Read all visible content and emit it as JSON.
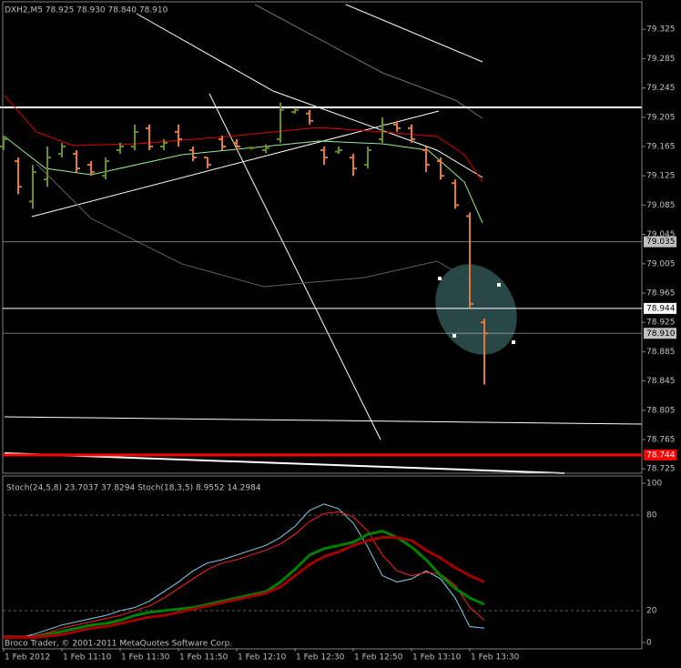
{
  "chart_data": [
    {
      "type": "ohlc",
      "title": "DXH2,M5  78.925 78.930 78.840 78.910",
      "categories": [
        "1 Feb 2012",
        null,
        null,
        null,
        "1 Feb 11:10",
        null,
        null,
        null,
        "1 Feb 11:30",
        null,
        null,
        null,
        "1 Feb 11:50",
        null,
        null,
        null,
        "1 Feb 12:10",
        null,
        null,
        null,
        "1 Feb 12:30",
        null,
        null,
        null,
        "1 Feb 12:50",
        null,
        null,
        null,
        "1 Feb 13:10",
        null,
        null,
        null,
        "1 Feb 13:30",
        null
      ],
      "open": [
        79.165,
        79.145,
        79.09,
        79.12,
        79.155,
        79.155,
        79.14,
        79.125,
        79.16,
        79.165,
        79.19,
        79.165,
        79.185,
        79.16,
        79.15,
        79.175,
        79.17,
        79.163,
        79.16,
        79.175,
        79.212,
        79.21,
        79.16,
        79.158,
        79.15,
        79.14,
        79.175,
        79.195,
        79.19,
        79.16,
        79.145,
        79.115,
        79.07,
        78.925
      ],
      "high": [
        79.18,
        79.15,
        79.14,
        79.165,
        79.17,
        79.16,
        79.145,
        79.15,
        79.17,
        79.195,
        79.195,
        79.175,
        79.195,
        79.165,
        79.15,
        79.18,
        79.175,
        79.165,
        79.168,
        79.225,
        79.218,
        79.215,
        79.165,
        79.165,
        79.155,
        79.165,
        79.205,
        79.2,
        79.195,
        79.165,
        79.15,
        79.12,
        79.075,
        78.93
      ],
      "low": [
        79.16,
        79.1,
        79.08,
        79.11,
        79.15,
        79.13,
        79.125,
        79.12,
        79.155,
        79.16,
        79.16,
        79.16,
        79.165,
        79.145,
        79.135,
        79.16,
        79.16,
        79.161,
        79.156,
        79.17,
        79.21,
        79.195,
        79.14,
        79.155,
        79.125,
        79.135,
        79.17,
        79.185,
        79.17,
        79.13,
        79.12,
        79.08,
        78.945,
        78.84
      ],
      "close": [
        79.175,
        79.11,
        79.13,
        79.15,
        79.165,
        79.135,
        79.13,
        79.145,
        79.165,
        79.185,
        79.165,
        79.17,
        79.175,
        79.15,
        79.14,
        79.165,
        79.165,
        79.163,
        79.163,
        79.215,
        79.215,
        79.2,
        79.15,
        79.16,
        79.135,
        79.16,
        79.195,
        79.19,
        79.175,
        79.14,
        79.125,
        79.085,
        78.95,
        78.91
      ],
      "up_color": "#6b8e23",
      "down_color": "#e07b39",
      "ylim": [
        78.719,
        79.365
      ],
      "yticks": [
        79.325,
        79.285,
        79.245,
        79.205,
        79.165,
        79.125,
        79.085,
        79.045,
        79.005,
        78.965,
        78.925,
        78.885,
        78.845,
        78.805,
        78.765,
        78.725
      ],
      "price_labels": [
        {
          "value": 79.035,
          "label": "79.035",
          "color": "#c0c0c0"
        },
        {
          "value": 78.944,
          "label": "78.944",
          "color": "#ffffff"
        },
        {
          "value": 78.91,
          "label": "78.910",
          "color": "#c0c0c0"
        },
        {
          "value": 78.744,
          "label": "78.744",
          "color": "#ff0000"
        }
      ]
    },
    {
      "type": "line",
      "title": "Stoch(24,5,8) 23.7037 37.8294  Stoch(18,3,5) 8.9552 14.2984",
      "series": [
        {
          "color": "#87ceeb",
          "width": 1,
          "values": [
            4,
            3,
            5,
            8,
            11,
            13,
            15,
            17,
            20,
            22,
            26,
            32,
            38,
            45,
            50,
            52,
            55,
            58,
            61,
            66,
            73,
            83,
            87,
            84,
            75,
            60,
            42,
            38,
            40,
            45,
            40,
            28,
            10,
            9
          ]
        },
        {
          "color": "#ff2020",
          "width": 1,
          "values": [
            4,
            4,
            4,
            6,
            9,
            11,
            13,
            15,
            17,
            20,
            23,
            28,
            34,
            40,
            46,
            50,
            52,
            55,
            58,
            62,
            68,
            76,
            81,
            82,
            79,
            70,
            55,
            45,
            42,
            44,
            43,
            36,
            22,
            14
          ]
        },
        {
          "color": "#008000",
          "width": 3,
          "values": [
            3,
            3,
            3,
            5,
            7,
            9,
            11,
            12,
            14,
            17,
            19,
            20,
            21,
            22,
            24,
            26,
            28,
            30,
            32,
            38,
            46,
            55,
            59,
            61,
            63,
            68,
            70,
            66,
            60,
            52,
            42,
            34,
            28,
            24
          ]
        },
        {
          "color": "#a00000",
          "width": 3,
          "values": [
            3,
            3,
            3,
            4,
            5,
            7,
            9,
            10,
            12,
            14,
            16,
            17,
            19,
            21,
            23,
            25,
            27,
            29,
            31,
            35,
            42,
            49,
            54,
            57,
            61,
            64,
            66,
            66,
            64,
            58,
            53,
            47,
            42,
            38
          ]
        }
      ],
      "ylim": [
        -3.4,
        104.6
      ],
      "yticks": [
        100,
        80,
        20,
        0
      ],
      "grid": true
    }
  ],
  "footer": "Broco Trader, © 2001-2011 MetaQuotes Software Corp."
}
